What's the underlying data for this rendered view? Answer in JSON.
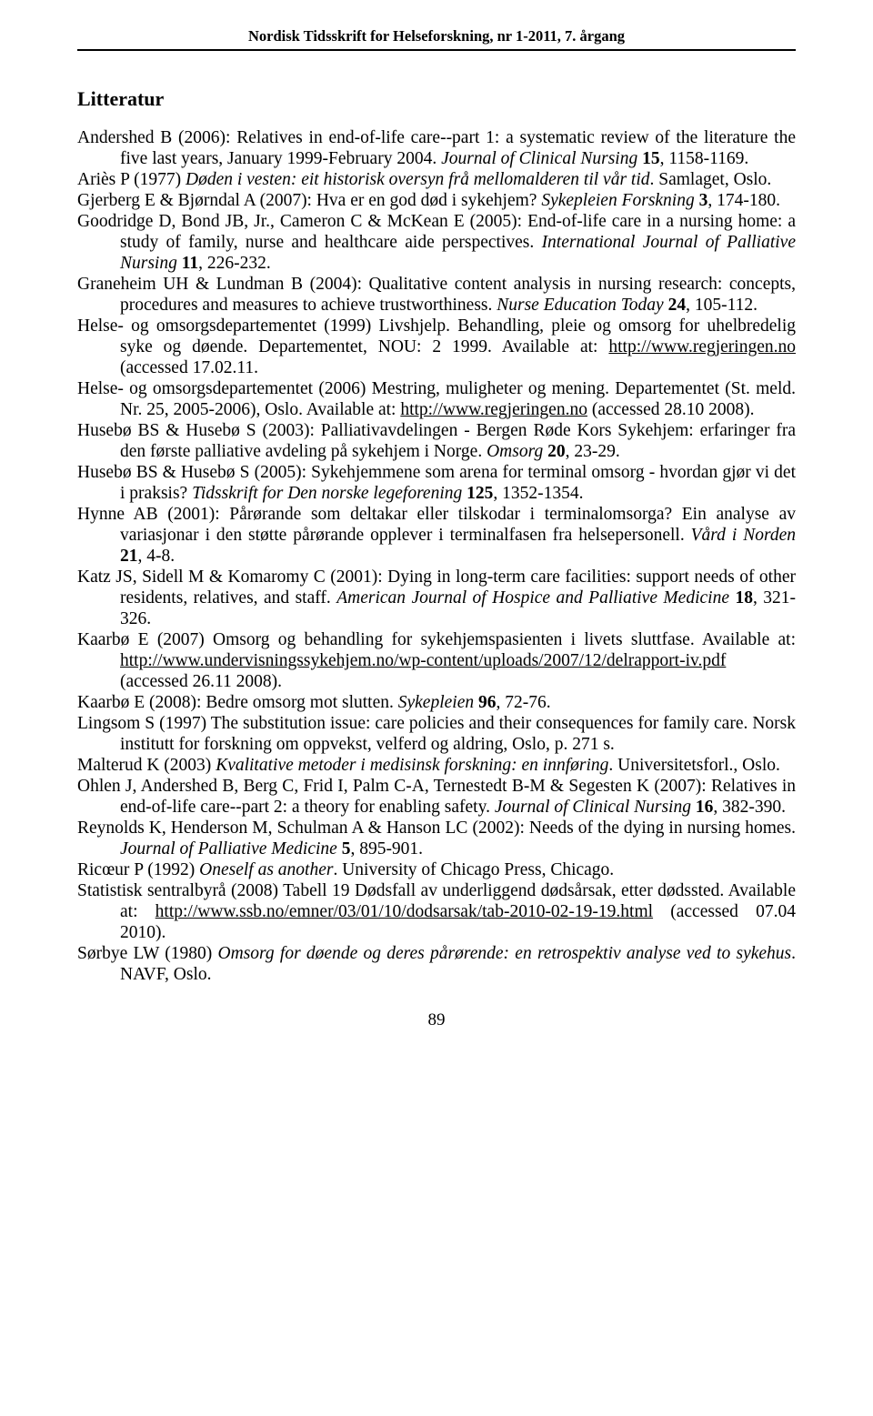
{
  "header": {
    "journal_title": "Nordisk Tidsskrift for Helseforskning, nr 1-2011, 7. årgang"
  },
  "section": {
    "title": "Litteratur"
  },
  "references": [
    {
      "segments": [
        {
          "text": "Andershed B (2006): Relatives in end-of-life care--part 1: a systematic review of the literature the five last years, January 1999-February 2004. "
        },
        {
          "text": "Journal of Clinical Nursing",
          "italic": true
        },
        {
          "text": " "
        },
        {
          "text": "15",
          "bold": true
        },
        {
          "text": ", 1158-1169."
        }
      ]
    },
    {
      "segments": [
        {
          "text": "Ariès P (1977) "
        },
        {
          "text": "Døden i vesten: eit historisk oversyn frå mellomalderen til vår tid",
          "italic": true
        },
        {
          "text": ". Samlaget, Oslo."
        }
      ]
    },
    {
      "segments": [
        {
          "text": "Gjerberg E & Bjørndal A (2007): Hva er en god død i sykehjem? "
        },
        {
          "text": "Sykepleien Forskning",
          "italic": true
        },
        {
          "text": " "
        },
        {
          "text": "3",
          "bold": true
        },
        {
          "text": ", 174-180."
        }
      ]
    },
    {
      "segments": [
        {
          "text": "Goodridge D, Bond JB, Jr., Cameron C & McKean E (2005): End-of-life care in a nursing home: a study of family, nurse and healthcare aide perspectives. "
        },
        {
          "text": "International Journal of Palliative Nursing",
          "italic": true
        },
        {
          "text": " "
        },
        {
          "text": "11",
          "bold": true
        },
        {
          "text": ", 226-232."
        }
      ]
    },
    {
      "segments": [
        {
          "text": "Graneheim UH & Lundman B (2004): Qualitative content analysis in nursing research: concepts, procedures and measures to achieve trustworthiness. "
        },
        {
          "text": "Nurse Education Today",
          "italic": true
        },
        {
          "text": " "
        },
        {
          "text": "24",
          "bold": true
        },
        {
          "text": ", 105-112."
        }
      ]
    },
    {
      "segments": [
        {
          "text": "Helse- og omsorgsdepartementet (1999) Livshjelp. Behandling, pleie og omsorg for uhelbredelig syke og døende. Departementet, NOU: 2 1999. Available at: "
        },
        {
          "text": "http://www.regjeringen.no",
          "underline": true
        },
        {
          "text": " (accessed 17.02.11."
        }
      ]
    },
    {
      "segments": [
        {
          "text": "Helse- og omsorgsdepartementet (2006) Mestring, muligheter og mening. Departementet (St. meld. Nr. 25, 2005-2006), Oslo. Available at: "
        },
        {
          "text": "http://www.regjeringen.no",
          "underline": true
        },
        {
          "text": " (accessed 28.10 2008)."
        }
      ]
    },
    {
      "segments": [
        {
          "text": "Husebø BS & Husebø S (2003): Palliativavdelingen - Bergen Røde Kors Sykehjem: erfaringer fra den første palliative avdeling på sykehjem i Norge. "
        },
        {
          "text": "Omsorg",
          "italic": true
        },
        {
          "text": " "
        },
        {
          "text": "20",
          "bold": true
        },
        {
          "text": ", 23-29."
        }
      ]
    },
    {
      "segments": [
        {
          "text": "Husebø BS & Husebø S (2005): Sykehjemmene som arena for terminal omsorg - hvordan gjør vi det i praksis? "
        },
        {
          "text": "Tidsskrift for Den norske legeforening",
          "italic": true
        },
        {
          "text": " "
        },
        {
          "text": "125",
          "bold": true
        },
        {
          "text": ", 1352-1354."
        }
      ]
    },
    {
      "segments": [
        {
          "text": "Hynne AB (2001): Pårørande som deltakar eller tilskodar i terminalomsorga? Ein analyse av variasjonar i den støtte pårørande opplever i terminalfasen fra helsepersonell. "
        },
        {
          "text": "Vård i Norden",
          "italic": true
        },
        {
          "text": " "
        },
        {
          "text": "21",
          "bold": true
        },
        {
          "text": ", 4-8."
        }
      ]
    },
    {
      "segments": [
        {
          "text": "Katz JS, Sidell M & Komaromy C (2001): Dying in long-term care facilities: support needs of other residents, relatives, and staff. "
        },
        {
          "text": "American Journal of Hospice and Palliative Medicine",
          "italic": true
        },
        {
          "text": " "
        },
        {
          "text": "18",
          "bold": true
        },
        {
          "text": ", 321-326."
        }
      ]
    },
    {
      "segments": [
        {
          "text": "Kaarbø E (2007) Omsorg og behandling for sykehjemspasienten i livets sluttfase. Available at: "
        },
        {
          "text": "http://www.undervisningssykehjem.no/wp-content/uploads/2007/12/delrapport-iv.pdf",
          "underline": true
        },
        {
          "text": " (accessed 26.11 2008)."
        }
      ]
    },
    {
      "segments": [
        {
          "text": "Kaarbø E (2008): Bedre omsorg mot slutten. "
        },
        {
          "text": "Sykepleien",
          "italic": true
        },
        {
          "text": " "
        },
        {
          "text": "96",
          "bold": true
        },
        {
          "text": ", 72-76."
        }
      ]
    },
    {
      "segments": [
        {
          "text": "Lingsom S (1997) The substitution issue: care policies and their consequences for family care. Norsk institutt for forskning om oppvekst, velferd og aldring, Oslo, p. 271 s."
        }
      ]
    },
    {
      "segments": [
        {
          "text": "Malterud K (2003) "
        },
        {
          "text": "Kvalitative metoder i medisinsk forskning: en innføring",
          "italic": true
        },
        {
          "text": ". Universitetsforl., Oslo."
        }
      ]
    },
    {
      "segments": [
        {
          "text": "Ohlen J, Andershed B, Berg C, Frid I, Palm C-A, Ternestedt B-M & Segesten K (2007): Relatives in end-of-life care--part 2: a theory for enabling safety. "
        },
        {
          "text": "Journal of Clinical Nursing",
          "italic": true
        },
        {
          "text": " "
        },
        {
          "text": "16",
          "bold": true
        },
        {
          "text": ", 382-390."
        }
      ]
    },
    {
      "segments": [
        {
          "text": "Reynolds K, Henderson M, Schulman A & Hanson LC (2002): Needs of the dying in nursing homes. "
        },
        {
          "text": "Journal of Palliative Medicine",
          "italic": true
        },
        {
          "text": " "
        },
        {
          "text": "5",
          "bold": true
        },
        {
          "text": ", 895-901."
        }
      ]
    },
    {
      "segments": [
        {
          "text": "Ricœur P (1992) "
        },
        {
          "text": "Oneself as another",
          "italic": true
        },
        {
          "text": ". University of Chicago Press, Chicago."
        }
      ]
    },
    {
      "segments": [
        {
          "text": "Statistisk sentralbyrå (2008) Tabell 19 Dødsfall av underliggend dødsårsak, etter dødssted. Available at: "
        },
        {
          "text": "http://www.ssb.no/emner/03/01/10/dodsarsak/tab-2010-02-19-19.html",
          "underline": true
        },
        {
          "text": " (accessed 07.04 2010)."
        }
      ]
    },
    {
      "segments": [
        {
          "text": "Sørbye LW (1980) "
        },
        {
          "text": "Omsorg for døende og deres pårørende: en retrospektiv analyse ved to sykehus",
          "italic": true
        },
        {
          "text": ". NAVF, Oslo."
        }
      ]
    }
  ],
  "page_number": "89"
}
